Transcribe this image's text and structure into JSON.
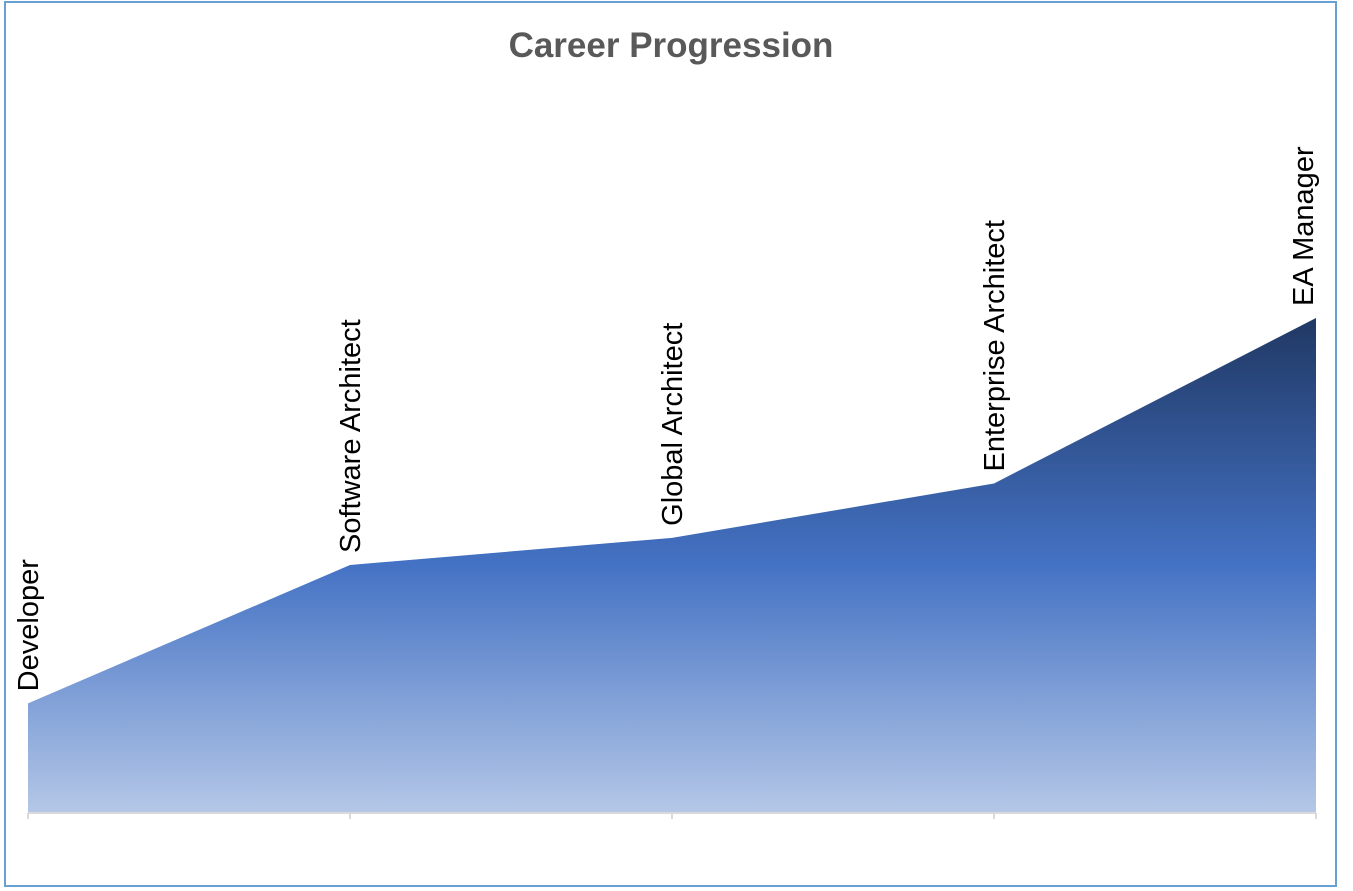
{
  "chart_data": {
    "type": "area",
    "title": "Career Progression",
    "categories": [
      "Developer",
      "Software Architect",
      "Global Architect",
      "Enterprise Architect",
      "EA Manager"
    ],
    "values": [
      22,
      50,
      55.5,
      66.5,
      100
    ],
    "ylim": [
      0,
      100
    ],
    "grid": false,
    "legend": "none",
    "colors": {
      "fill_top": "#203864",
      "fill_mid": "#4472c4",
      "fill_bottom": "#b4c7e7",
      "axis": "#d9d9d9",
      "border": "#6a9fd4"
    }
  }
}
